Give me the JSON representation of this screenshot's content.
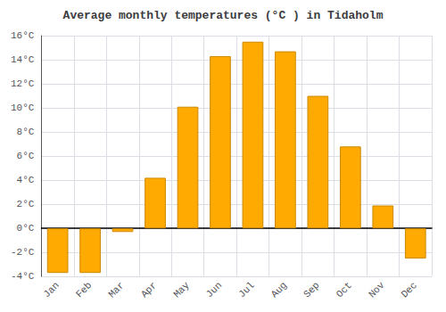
{
  "chart_data": {
    "type": "bar",
    "title": "Average monthly temperatures (°C ) in Tidaholm",
    "categories": [
      "Jan",
      "Feb",
      "Mar",
      "Apr",
      "May",
      "Jun",
      "Jul",
      "Aug",
      "Sep",
      "Oct",
      "Nov",
      "Dec"
    ],
    "values": [
      -3.7,
      -3.7,
      -0.3,
      4.2,
      10.1,
      14.3,
      15.5,
      14.7,
      11.0,
      6.8,
      1.9,
      -2.5
    ],
    "color": "#FFAA00",
    "ylim": [
      -4,
      16
    ],
    "yticks": [
      {
        "value": -4,
        "label": "-4°C"
      },
      {
        "value": -2,
        "label": "-2°C"
      },
      {
        "value": 0,
        "label": "0°C"
      },
      {
        "value": 2,
        "label": "2°C"
      },
      {
        "value": 4,
        "label": "4°C"
      },
      {
        "value": 6,
        "label": "6°C"
      },
      {
        "value": 8,
        "label": "8°C"
      },
      {
        "value": 10,
        "label": "10°C"
      },
      {
        "value": 12,
        "label": "12°C"
      },
      {
        "value": 14,
        "label": "14°C"
      },
      {
        "value": 16,
        "label": "16°C"
      }
    ],
    "grid": true
  }
}
